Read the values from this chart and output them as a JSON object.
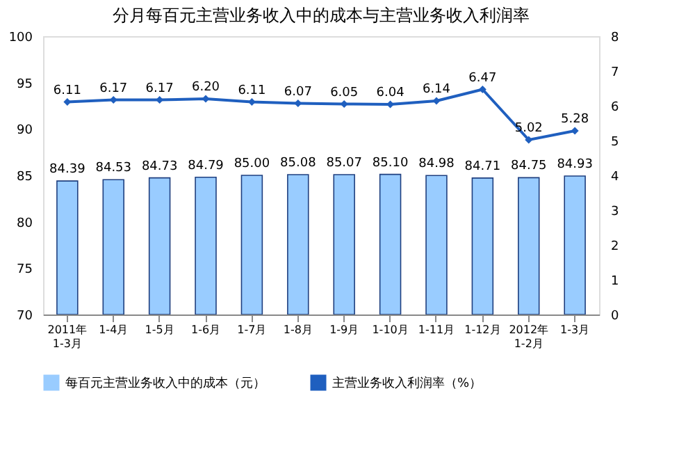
{
  "chart_data": {
    "type": "bar",
    "title": "分月每百元主营业务收入中的成本与主营业务收入利润率",
    "categories": [
      "2011年\n1-3月",
      "1-4月",
      "1-5月",
      "1-6月",
      "1-7月",
      "1-8月",
      "1-9月",
      "1-10月",
      "1-11月",
      "1-12月",
      "2012年\n1-2月",
      "1-3月"
    ],
    "series": [
      {
        "name": "每百元主营业务收入中的成本（元）",
        "color": "#99ccff",
        "values": [
          84.39,
          84.53,
          84.73,
          84.79,
          85.0,
          85.08,
          85.07,
          85.1,
          84.98,
          84.71,
          84.75,
          84.93
        ],
        "value_labels": [
          "84.39",
          "84.53",
          "84.73",
          "84.79",
          "85.00",
          "85.08",
          "85.07",
          "85.10",
          "84.98",
          "84.71",
          "84.75",
          "84.93"
        ]
      },
      {
        "name": "主营业务收入利润率（%）",
        "type": "line",
        "axis": "y2",
        "color": "#1f5fbf",
        "marker": "diamond",
        "values": [
          6.11,
          6.17,
          6.17,
          6.2,
          6.11,
          6.07,
          6.05,
          6.04,
          6.14,
          6.47,
          5.02,
          5.28
        ],
        "value_labels": [
          "6.11",
          "6.17",
          "6.17",
          "6.20",
          "6.11",
          "6.07",
          "6.05",
          "6.04",
          "6.14",
          "6.47",
          "5.02",
          "5.28"
        ]
      }
    ],
    "ylim": [
      70,
      100
    ],
    "yticks": [
      70,
      75,
      80,
      85,
      90,
      95,
      100
    ],
    "y2lim": [
      0,
      8
    ],
    "y2ticks": [
      0,
      1,
      2,
      3,
      4,
      5,
      6,
      7,
      8
    ],
    "grid": false,
    "legend": "bottom"
  }
}
